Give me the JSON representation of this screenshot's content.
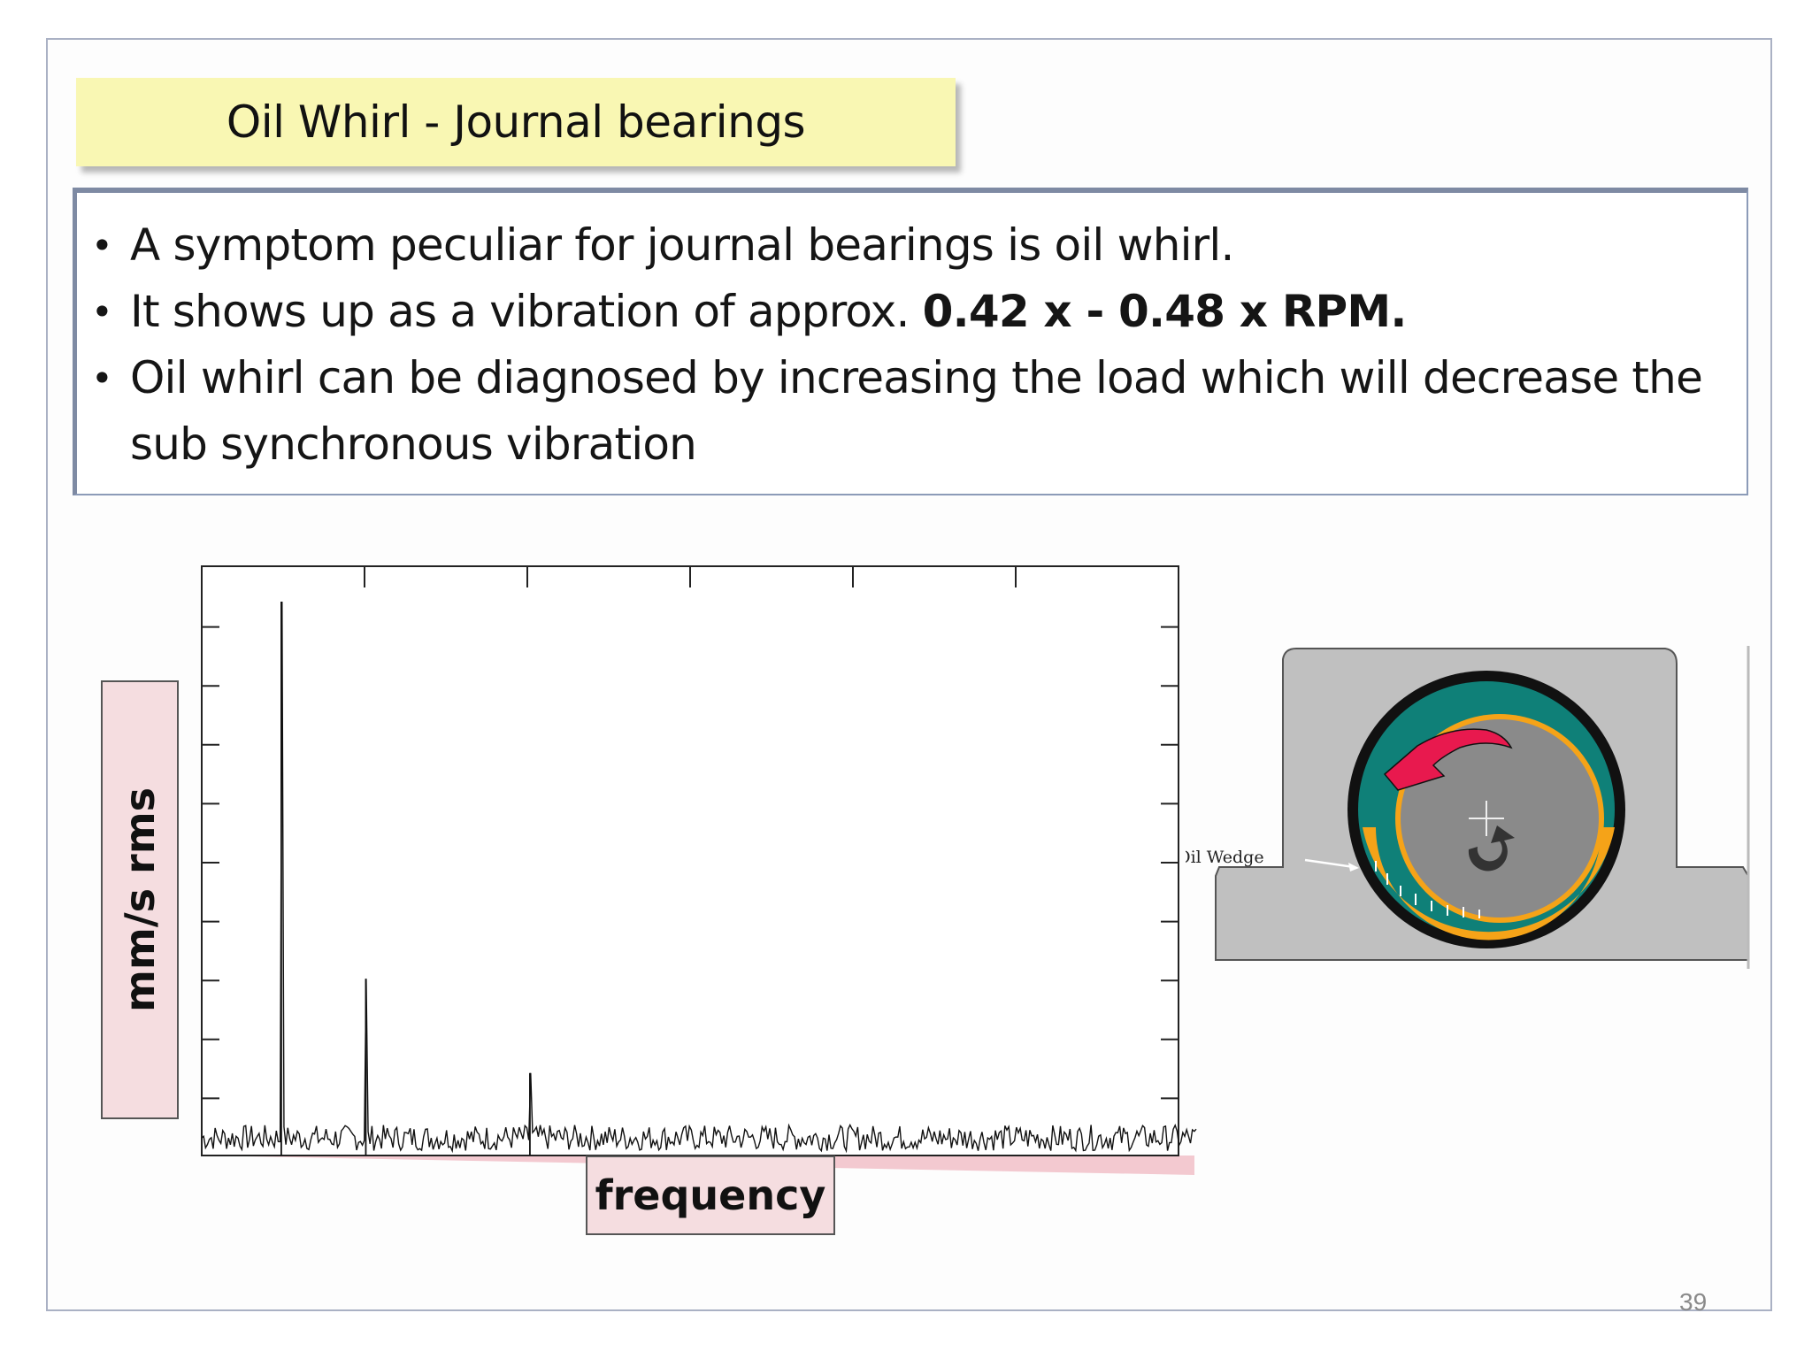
{
  "slide": {
    "title": "Oil Whirl - Journal bearings",
    "bullets": [
      {
        "text": "A symptom peculiar for journal bearings is oil whirl.",
        "bold": ""
      },
      {
        "text": "It shows up as a vibration of approx. ",
        "bold": "0.42 x - 0.48 x RPM."
      },
      {
        "text": "Oil whirl can be diagnosed by increasing the load which will decrease the sub synchronous vibration",
        "bold": ""
      }
    ],
    "page_number": "39"
  },
  "figure": {
    "ylabel": "mm/s rms",
    "xlabel": "frequency",
    "bearing_label": "Oil Wedge"
  },
  "colors": {
    "title_bg": "#f9f7b3",
    "label_bg": "#f5dde0",
    "bearing_housing": "#c0c0c0",
    "oil_teal": "#0f8078",
    "oil_orange": "#f5a318",
    "whirl_arrow": "#e8194e"
  },
  "chart_data": {
    "type": "line",
    "title": "",
    "xlabel": "frequency",
    "ylabel": "mm/s rms",
    "x_ticks": 6,
    "y_ticks": 9,
    "peaks": [
      {
        "x": 0.08,
        "y": 0.94
      },
      {
        "x": 0.165,
        "y": 0.3
      },
      {
        "x": 0.33,
        "y": 0.14
      }
    ],
    "noise_floor": 0.04
  }
}
